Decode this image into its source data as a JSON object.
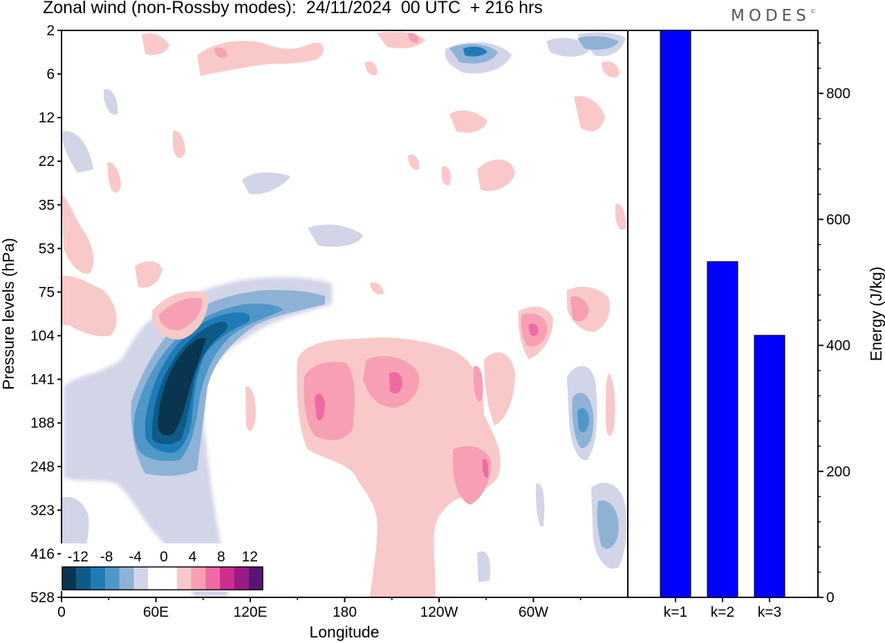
{
  "title": "Zonal wind (non-Rossby modes):  24/11/2024  00 UTC  + 216 hrs",
  "logo": "MODES",
  "chart_data": [
    {
      "type": "heatmap",
      "title": "Zonal wind (non-Rossby modes):  24/11/2024  00 UTC  + 216 hrs",
      "xlabel": "Longitude",
      "ylabel": "Pressure levels (hPa)",
      "x_ticks": [
        "0",
        "60E",
        "120E",
        "180",
        "120W",
        "60W"
      ],
      "x_tick_values": [
        0,
        60,
        120,
        180,
        240,
        300
      ],
      "xlim": [
        0,
        360
      ],
      "y_ticks": [
        "2",
        "6",
        "12",
        "22",
        "35",
        "53",
        "75",
        "104",
        "141",
        "188",
        "248",
        "323",
        "416",
        "528"
      ],
      "colorbar": {
        "labels": [
          "-12",
          "-8",
          "-4",
          "0",
          "4",
          "8",
          "12"
        ],
        "colors": [
          "#0a3550",
          "#0d5a87",
          "#1f7bb6",
          "#4f97c8",
          "#8eb2d6",
          "#d2d4e8",
          "#ffffff",
          "#ffffff",
          "#f9c9c9",
          "#f7a0b4",
          "#ef6aa4",
          "#d02c8e",
          "#9c1a86",
          "#5a1473"
        ]
      },
      "features": [
        {
          "name": "easterly jet core",
          "value": -14,
          "lon": 65,
          "level": "141-188 hPa"
        },
        {
          "name": "westerly maxima",
          "value": 10,
          "lon": 200,
          "level": "141 hPa"
        },
        {
          "name": "westerly maxima",
          "value": 10,
          "lon": 160,
          "level": "188 hPa"
        },
        {
          "name": "westerly maxima",
          "value": 10,
          "lon": 270,
          "level": "248 hPa"
        },
        {
          "name": "westerly maxima",
          "value": 10,
          "lon": 300,
          "level": "104 hPa"
        }
      ]
    },
    {
      "type": "bar",
      "categories": [
        "k=1",
        "k=2",
        "k=3"
      ],
      "values": [
        900,
        533,
        416
      ],
      "ylabel": "Energy (J/kg)",
      "ylim": [
        0,
        900
      ],
      "y_ticks": [
        0,
        200,
        400,
        600,
        800
      ],
      "bar_color": "#0000ff"
    }
  ]
}
